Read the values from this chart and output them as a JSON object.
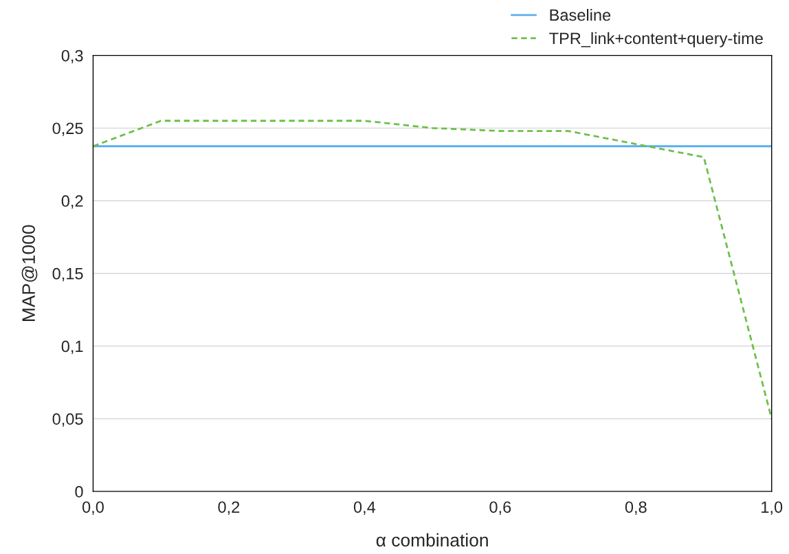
{
  "chart_data": {
    "type": "line",
    "xlabel": "α combination",
    "ylabel": "MAP@1000",
    "x": [
      0,
      0.1,
      0.2,
      0.3,
      0.4,
      0.5,
      0.6,
      0.7,
      0.8,
      0.9,
      1.0
    ],
    "series": [
      {
        "name": "Baseline",
        "color": "#5aaff0",
        "line_style": "solid",
        "values": [
          0.2375,
          0.2375,
          0.2375,
          0.2375,
          0.2375,
          0.2375,
          0.2375,
          0.2375,
          0.2375,
          0.2375,
          0.2375
        ]
      },
      {
        "name": "TPR_link+content+query-time",
        "color": "#6cc04a",
        "line_style": "dashed",
        "values": [
          0.2375,
          0.255,
          0.255,
          0.255,
          0.255,
          0.25,
          0.248,
          0.248,
          0.239,
          0.23,
          0.05
        ]
      }
    ],
    "xlim": [
      0,
      1.0
    ],
    "ylim": [
      0,
      0.3
    ],
    "xticks": [
      {
        "value": 0,
        "label": "0,0"
      },
      {
        "value": 0.2,
        "label": "0,2"
      },
      {
        "value": 0.4,
        "label": "0,4"
      },
      {
        "value": 0.6,
        "label": "0,6"
      },
      {
        "value": 0.8,
        "label": "0,8"
      },
      {
        "value": 1.0,
        "label": "1,0"
      }
    ],
    "yticks": [
      0,
      {
        "value": 0.05,
        "label": "0,05"
      },
      {
        "value": 0.1,
        "label": "0,1"
      },
      {
        "value": 0.15,
        "label": "0,15"
      },
      {
        "value": 0.2,
        "label": "0,2"
      },
      {
        "value": 0.25,
        "label": "0,25"
      },
      {
        "value": 0.3,
        "label": "0,3"
      }
    ],
    "grid": "y",
    "legend": "top right",
    "marker": "none"
  }
}
